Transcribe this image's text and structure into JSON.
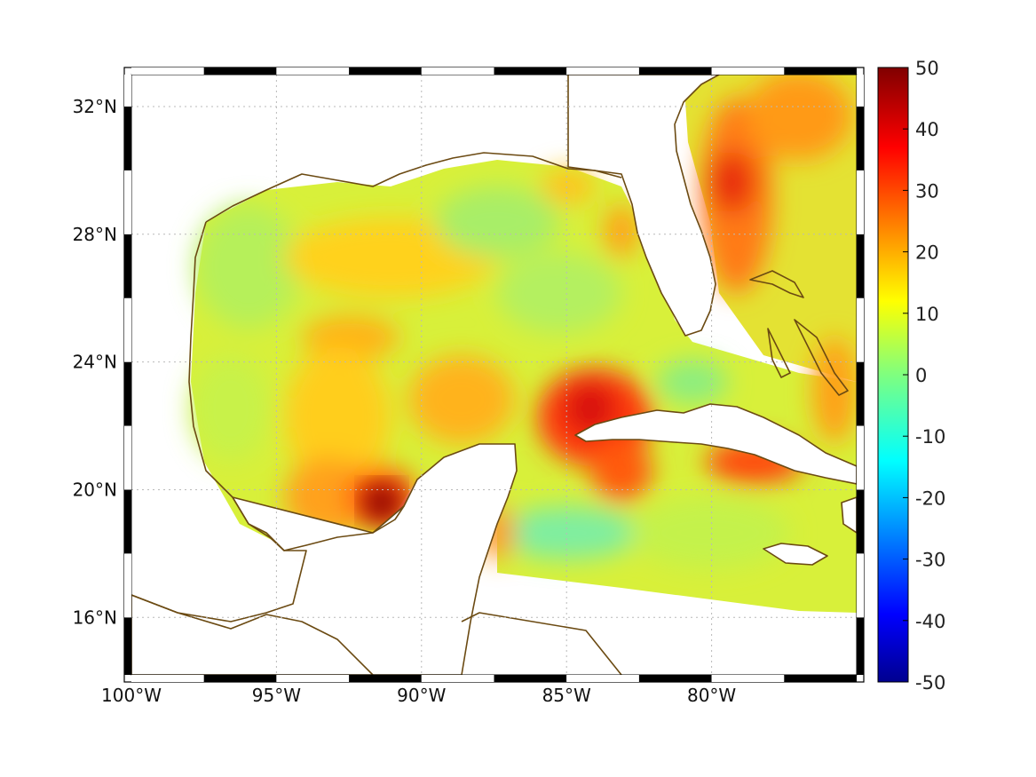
{
  "map": {
    "lon_labels": [
      "100°W",
      "95°W",
      "90°W",
      "85°W",
      "80°W"
    ],
    "lat_labels": [
      "32°N",
      "28°N",
      "24°N",
      "20°N",
      "16°N"
    ],
    "lon_values": [
      -100,
      -95,
      -90,
      -85,
      -80
    ],
    "lat_values": [
      32,
      28,
      24,
      20,
      16
    ],
    "extent": {
      "lon_min": -100,
      "lon_max": -75,
      "lat_min": 14.2,
      "lat_max": 33
    },
    "coastline_color": "#6b4a12",
    "colormap": "jet"
  },
  "colorbar": {
    "labels": [
      "50",
      "40",
      "30",
      "20",
      "10",
      "0",
      "-10",
      "-20",
      "-30",
      "-40",
      "-50"
    ],
    "min": -50,
    "max": 50
  }
}
